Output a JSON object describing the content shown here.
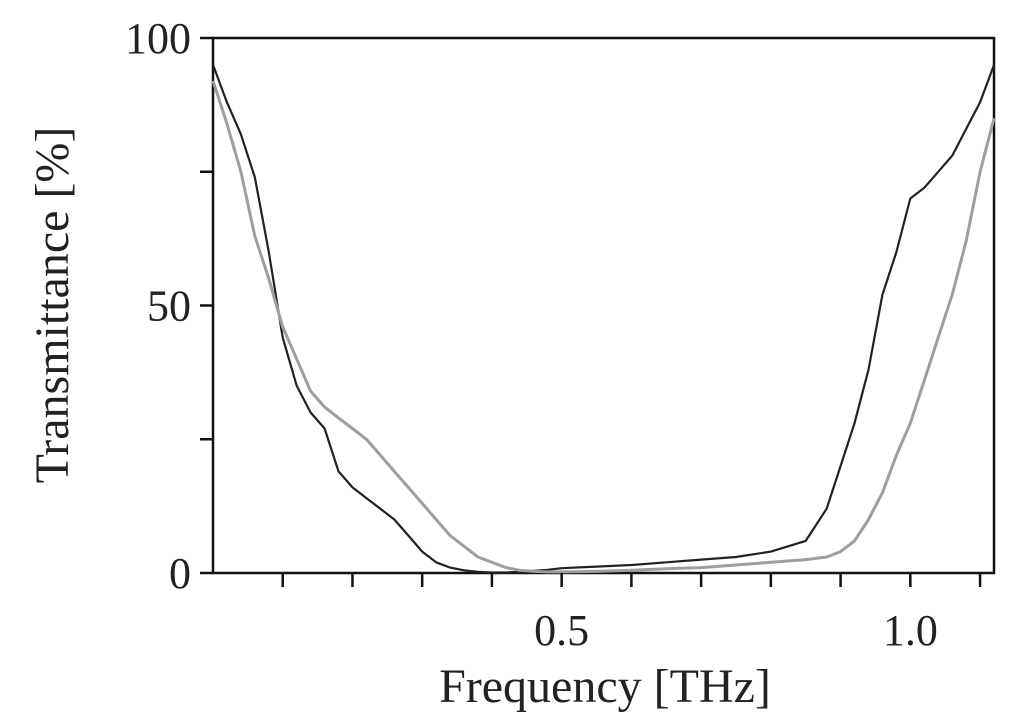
{
  "chart_data": {
    "type": "line",
    "xlabel": "Frequency [THz]",
    "ylabel": "Transmittance [%]",
    "xlim": [
      0.0,
      1.12
    ],
    "ylim": [
      0,
      100
    ],
    "x_ticks": [
      0.1,
      0.2,
      0.3,
      0.4,
      0.5,
      0.6,
      0.7,
      0.8,
      0.9,
      1.0,
      1.1
    ],
    "x_tick_labels": [
      {
        "value": 0.5,
        "label": "0.5"
      },
      {
        "value": 1.0,
        "label": "1.0"
      }
    ],
    "y_ticks": [
      0,
      25,
      50,
      75,
      100
    ],
    "y_tick_labels": [
      {
        "value": 0,
        "label": "0"
      },
      {
        "value": 50,
        "label": "50"
      },
      {
        "value": 100,
        "label": "100"
      }
    ],
    "grid": false,
    "legend": false,
    "series": [
      {
        "color": "#222222",
        "x": [
          0.0,
          0.02,
          0.04,
          0.06,
          0.08,
          0.1,
          0.12,
          0.14,
          0.16,
          0.18,
          0.2,
          0.22,
          0.24,
          0.26,
          0.28,
          0.3,
          0.32,
          0.34,
          0.36,
          0.38,
          0.4,
          0.42,
          0.44,
          0.46,
          0.48,
          0.5,
          0.55,
          0.6,
          0.65,
          0.7,
          0.75,
          0.8,
          0.85,
          0.88,
          0.9,
          0.92,
          0.94,
          0.96,
          0.98,
          1.0,
          1.02,
          1.04,
          1.06,
          1.08,
          1.1,
          1.12
        ],
        "y": [
          95,
          88,
          82,
          74,
          60,
          44,
          35,
          30,
          27,
          19,
          16,
          14,
          12,
          10,
          7,
          4,
          2,
          1,
          0.5,
          0.2,
          0.1,
          0.1,
          0.2,
          0.4,
          0.6,
          0.9,
          1.2,
          1.5,
          2,
          2.5,
          3,
          4,
          6,
          12,
          20,
          28,
          38,
          52,
          60,
          70,
          72,
          75,
          78,
          83,
          88,
          95
        ]
      },
      {
        "color": "#9e9e9e",
        "x": [
          0.0,
          0.02,
          0.04,
          0.06,
          0.08,
          0.1,
          0.12,
          0.14,
          0.16,
          0.18,
          0.2,
          0.22,
          0.24,
          0.26,
          0.28,
          0.3,
          0.32,
          0.34,
          0.36,
          0.38,
          0.4,
          0.42,
          0.44,
          0.46,
          0.48,
          0.5,
          0.55,
          0.6,
          0.65,
          0.7,
          0.75,
          0.8,
          0.85,
          0.88,
          0.9,
          0.92,
          0.94,
          0.96,
          0.98,
          1.0,
          1.02,
          1.04,
          1.06,
          1.08,
          1.1,
          1.12
        ],
        "y": [
          92,
          84,
          75,
          63,
          55,
          46,
          40,
          34,
          31,
          29,
          27,
          25,
          22,
          19,
          16,
          13,
          10,
          7,
          5,
          3,
          2,
          1,
          0.5,
          0.3,
          0.2,
          0.2,
          0.3,
          0.5,
          0.8,
          1,
          1.5,
          2,
          2.5,
          3,
          4,
          6,
          10,
          15,
          22,
          28,
          36,
          44,
          52,
          62,
          75,
          85
        ]
      }
    ]
  }
}
